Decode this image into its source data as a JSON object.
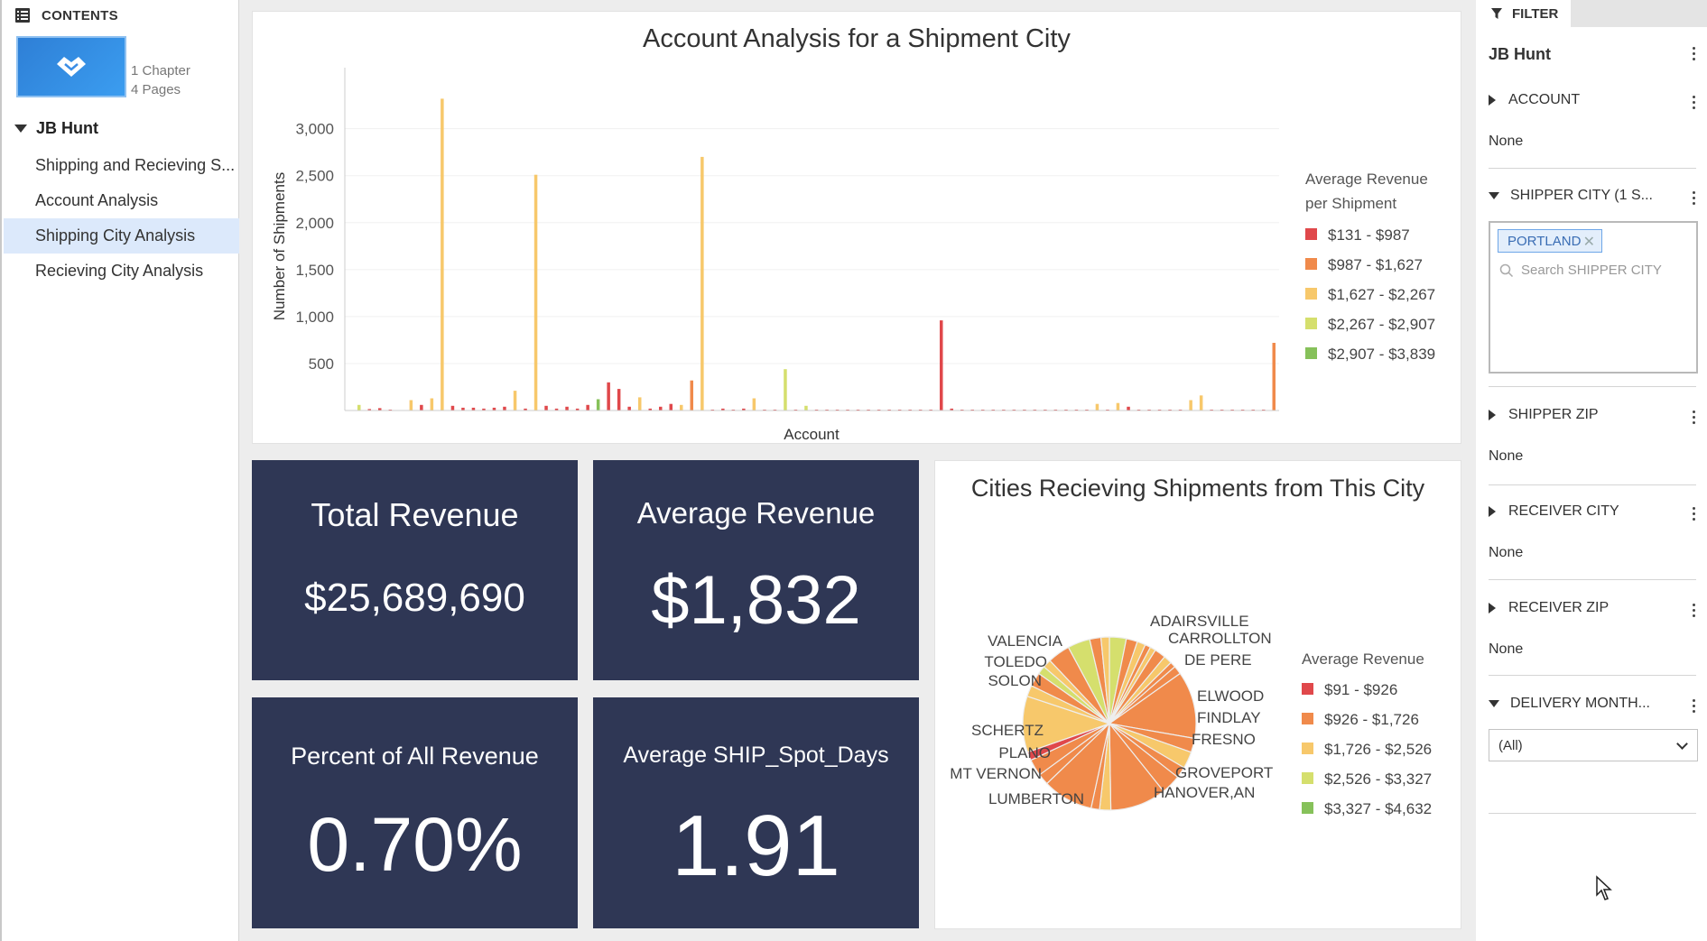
{
  "contents": {
    "header": "CONTENTS",
    "book_meta": [
      "1 Chapter",
      "4 Pages"
    ],
    "chapter": "JB Hunt",
    "pages": [
      {
        "label": "Shipping and Recieving S...",
        "active": false
      },
      {
        "label": "Account Analysis",
        "active": false
      },
      {
        "label": "Shipping City Analysis",
        "active": true
      },
      {
        "label": "Recieving City Analysis",
        "active": false
      }
    ]
  },
  "bar_chart": {
    "title": "Account Analysis for a Shipment City",
    "ylabel": "Number of Shipments",
    "xlabel": "Account",
    "legend_title": [
      "Average Revenue",
      "per Shipment"
    ]
  },
  "kpis": {
    "total_revenue": {
      "label": "Total Revenue",
      "value": "$25,689,690"
    },
    "average_revenue": {
      "label": "Average Revenue",
      "value": "$1,832"
    },
    "percent_revenue": {
      "label": "Percent of All Revenue",
      "value": "0.70%"
    },
    "avg_spot_days": {
      "label": "Average SHIP_Spot_Days",
      "value": "1.91"
    }
  },
  "pie_chart": {
    "title": "Cities Recieving Shipments from This City",
    "legend_title": "Average Revenue"
  },
  "filter": {
    "tab_label": "FILTER",
    "title": "JB Hunt",
    "sections": {
      "account": {
        "label": "ACCOUNT",
        "value": "None"
      },
      "shipper_city": {
        "label": "SHIPPER CITY (1 S...",
        "chip": "PORTLAND",
        "search_placeholder": "Search SHIPPER CITY"
      },
      "shipper_zip": {
        "label": "SHIPPER ZIP",
        "value": "None"
      },
      "receiver_city": {
        "label": "RECEIVER CITY",
        "value": "None"
      },
      "receiver_zip": {
        "label": "RECEIVER ZIP",
        "value": "None"
      },
      "delivery_month": {
        "label": "DELIVERY MONTH...",
        "value": "(All)"
      }
    }
  },
  "chart_data": [
    {
      "type": "bar",
      "title": "Account Analysis for a Shipment City",
      "xlabel": "Account",
      "ylabel": "Number of Shipments",
      "y_ticks": [
        "500",
        "1,000",
        "1,500",
        "2,000",
        "2,500",
        "3,000"
      ],
      "ylim": [
        0,
        3650
      ],
      "grid": true,
      "legend_placement": "right",
      "legend": [
        {
          "label": "$131 - $987",
          "color": "#e0484b"
        },
        {
          "label": "$987 - $1,627",
          "color": "#f08a4b"
        },
        {
          "label": "$1,627 - $2,267",
          "color": "#f7c86b"
        },
        {
          "label": "$2,267 - $2,907",
          "color": "#d5df6d"
        },
        {
          "label": "$2,907 - $3,839",
          "color": "#86c15a"
        }
      ],
      "values": [
        60,
        15,
        25,
        10,
        5,
        110,
        60,
        130,
        3320,
        50,
        30,
        30,
        20,
        30,
        40,
        210,
        20,
        2510,
        50,
        20,
        40,
        20,
        60,
        120,
        300,
        230,
        40,
        140,
        20,
        40,
        70,
        60,
        320,
        2700,
        10,
        20,
        10,
        20,
        130,
        10,
        10,
        440,
        10,
        50,
        10,
        10,
        10,
        10,
        10,
        10,
        10,
        10,
        10,
        10,
        10,
        10,
        960,
        20,
        10,
        10,
        10,
        10,
        10,
        10,
        10,
        10,
        10,
        10,
        10,
        10,
        10,
        70,
        10,
        80,
        40,
        10,
        10,
        10,
        10,
        10,
        110,
        160,
        10,
        10,
        10,
        10,
        10,
        10,
        720
      ],
      "color_bins": [
        3,
        0,
        0,
        0,
        0,
        2,
        0,
        2,
        2,
        0,
        0,
        0,
        0,
        0,
        0,
        2,
        0,
        2,
        0,
        0,
        0,
        0,
        0,
        4,
        0,
        0,
        0,
        2,
        0,
        0,
        0,
        2,
        1,
        2,
        0,
        0,
        0,
        0,
        2,
        0,
        0,
        3,
        0,
        3,
        0,
        0,
        0,
        0,
        0,
        0,
        0,
        0,
        0,
        0,
        0,
        0,
        0,
        0,
        0,
        0,
        0,
        0,
        0,
        0,
        0,
        0,
        0,
        0,
        0,
        0,
        0,
        2,
        0,
        2,
        0,
        0,
        0,
        0,
        0,
        0,
        2,
        2,
        0,
        0,
        0,
        0,
        0,
        0,
        1
      ]
    },
    {
      "type": "pie",
      "title": "Cities Recieving Shipments from This City",
      "legend_title": "Average Revenue",
      "legend_placement": "right",
      "legend": [
        {
          "label": "$91 - $926",
          "color": "#e0484b"
        },
        {
          "label": "$926 - $1,726",
          "color": "#f08a4b"
        },
        {
          "label": "$1,726 - $2,526",
          "color": "#f7c86b"
        },
        {
          "label": "$2,526 - $3,327",
          "color": "#d5df6d"
        },
        {
          "label": "$3,327 - $4,632",
          "color": "#86c15a"
        }
      ],
      "labels": [
        "ADAIRSVILLE",
        "CARROLLTON",
        "DE PERE",
        "ELWOOD",
        "FINDLAY",
        "FRESNO",
        "GROVEPORT",
        "HANOVER,AN",
        "LUMBERTON",
        "MT VERNON",
        "PLANO",
        "SCHERTZ",
        "SOLON",
        "TOLEDO",
        "VALENCIA"
      ],
      "slices": [
        {
          "value": 3,
          "bin": 3
        },
        {
          "value": 2,
          "bin": 1
        },
        {
          "value": 1.5,
          "bin": 2
        },
        {
          "value": 1,
          "bin": 1
        },
        {
          "value": 1,
          "bin": 2
        },
        {
          "value": 2,
          "bin": 1
        },
        {
          "value": 1.5,
          "bin": 2
        },
        {
          "value": 1,
          "bin": 1
        },
        {
          "value": 1.5,
          "bin": 1
        },
        {
          "value": 12,
          "bin": 1
        },
        {
          "value": 2.5,
          "bin": 1
        },
        {
          "value": 3,
          "bin": 2
        },
        {
          "value": 2,
          "bin": 1
        },
        {
          "value": 3.5,
          "bin": 1
        },
        {
          "value": 10,
          "bin": 1
        },
        {
          "value": 2,
          "bin": 2
        },
        {
          "value": 1.5,
          "bin": 1
        },
        {
          "value": 9,
          "bin": 1
        },
        {
          "value": 2,
          "bin": 1
        },
        {
          "value": 3,
          "bin": 1
        },
        {
          "value": 1.5,
          "bin": 0
        },
        {
          "value": 10,
          "bin": 2
        },
        {
          "value": 2,
          "bin": 2
        },
        {
          "value": 2.5,
          "bin": 1
        },
        {
          "value": 1.5,
          "bin": 3
        },
        {
          "value": 1.5,
          "bin": 2
        },
        {
          "value": 4,
          "bin": 1
        },
        {
          "value": 4,
          "bin": 3
        },
        {
          "value": 2,
          "bin": 1
        },
        {
          "value": 1.5,
          "bin": 2
        }
      ]
    }
  ]
}
